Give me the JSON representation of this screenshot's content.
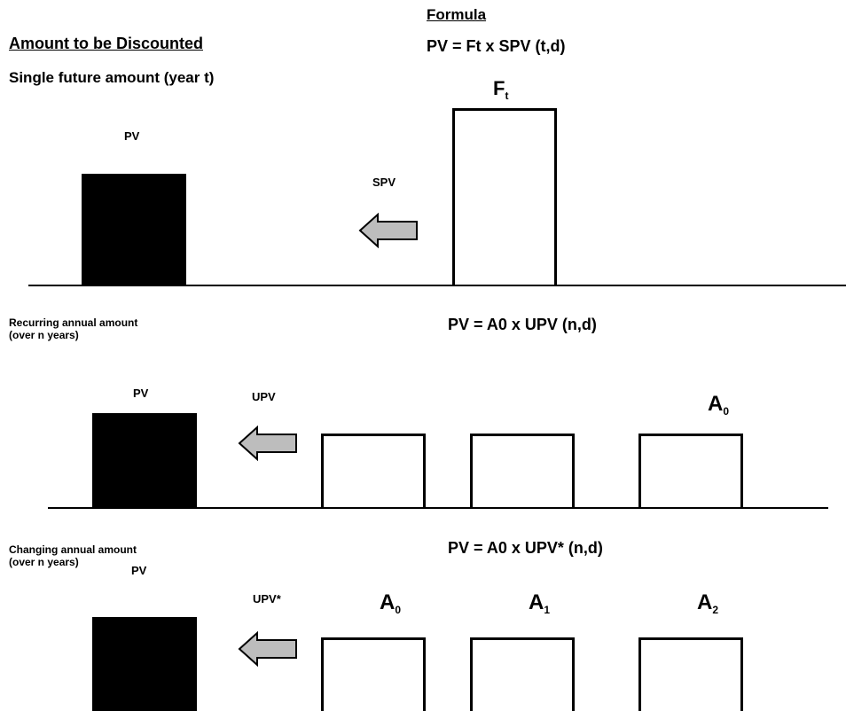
{
  "header": {
    "formula_heading": "Formula",
    "amount_heading": "Amount to be Discounted"
  },
  "row1": {
    "label": "Single future amount (year t)",
    "formula": "PV = Ft x SPV (t,d)",
    "pv_label": "PV",
    "factor_label": "SPV",
    "box_label_main": "F",
    "box_label_sub": "t"
  },
  "row2": {
    "label_line1": "Recurring annual amount",
    "label_line2": "(over n years)",
    "formula": "PV = A0 x UPV (n,d)",
    "pv_label": "PV",
    "factor_label": "UPV",
    "box_label_main": "A",
    "box_label_sub": "0"
  },
  "row3": {
    "label_line1": "Changing annual amount",
    "label_line2": "(over n years)",
    "formula": "PV = A0 x UPV* (n,d)",
    "pv_label": "PV",
    "factor_label": "UPV*",
    "boxes": [
      {
        "main": "A",
        "sub": "0"
      },
      {
        "main": "A",
        "sub": "1"
      },
      {
        "main": "A",
        "sub": "2"
      }
    ]
  },
  "colors": {
    "arrow_fill": "#bdbdbd",
    "solid_block": "#000000"
  }
}
